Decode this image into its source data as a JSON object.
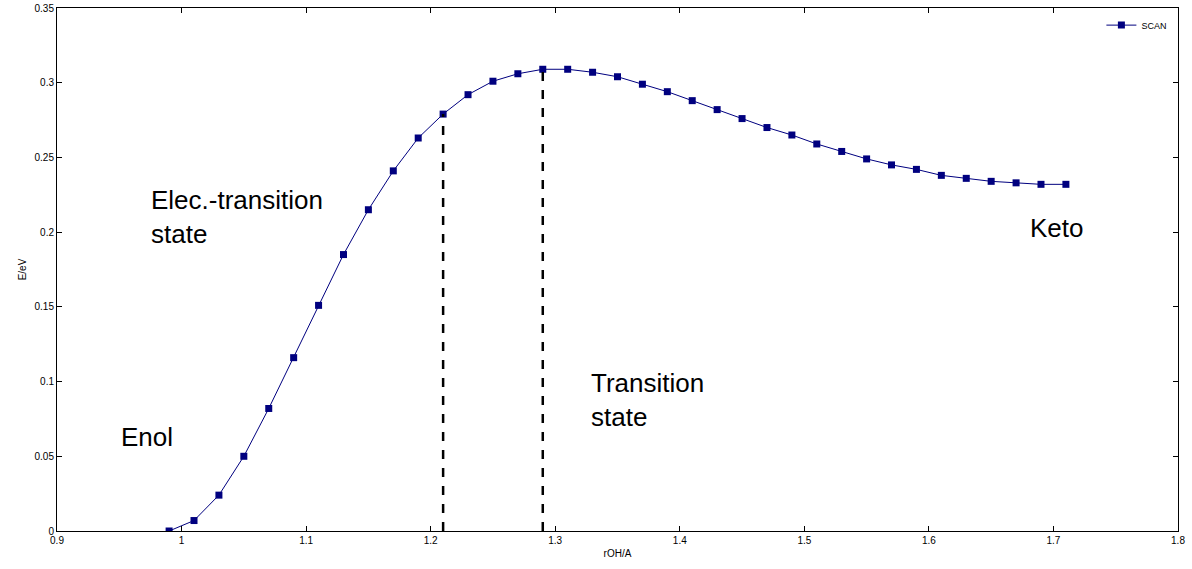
{
  "chart_data": {
    "type": "line",
    "x_label": "rOH/A",
    "y_label": "E/eV",
    "x": [
      0.99,
      1.01,
      1.03,
      1.05,
      1.07,
      1.09,
      1.11,
      1.13,
      1.15,
      1.17,
      1.19,
      1.21,
      1.23,
      1.25,
      1.27,
      1.29,
      1.31,
      1.33,
      1.35,
      1.37,
      1.39,
      1.41,
      1.43,
      1.45,
      1.47,
      1.49,
      1.51,
      1.53,
      1.55,
      1.57,
      1.59,
      1.61,
      1.63,
      1.65,
      1.67,
      1.69,
      1.71
    ],
    "series": [
      {
        "name": "SCAN",
        "color": "#00007f",
        "marker": "square",
        "line_style": "solid",
        "values": [
          0,
          0.007,
          0.024,
          0.05,
          0.082,
          0.116,
          0.151,
          0.185,
          0.215,
          0.241,
          0.263,
          0.279,
          0.292,
          0.301,
          0.306,
          0.309,
          0.309,
          0.307,
          0.304,
          0.299,
          0.294,
          0.288,
          0.282,
          0.276,
          0.27,
          0.265,
          0.259,
          0.254,
          0.249,
          0.245,
          0.242,
          0.238,
          0.236,
          0.234,
          0.233,
          0.232,
          0.232
        ]
      }
    ],
    "xlim": [
      0.9,
      1.8
    ],
    "xticks": [
      0.9,
      1,
      1.1,
      1.2,
      1.3,
      1.4,
      1.5,
      1.6,
      1.7,
      1.8
    ],
    "ylim": [
      0,
      0.35
    ],
    "yticks": [
      0,
      0.05,
      0.1,
      0.15,
      0.2,
      0.25,
      0.3,
      0.35
    ],
    "grid": false,
    "legend": "top right",
    "dashed_lines": [
      {
        "x": 1.21,
        "y": 0.279
      },
      {
        "x": 1.29,
        "y": 0.309
      }
    ],
    "annotations": [
      "Elec.-transition state",
      "Enol",
      "Transition state",
      "Keto"
    ]
  }
}
